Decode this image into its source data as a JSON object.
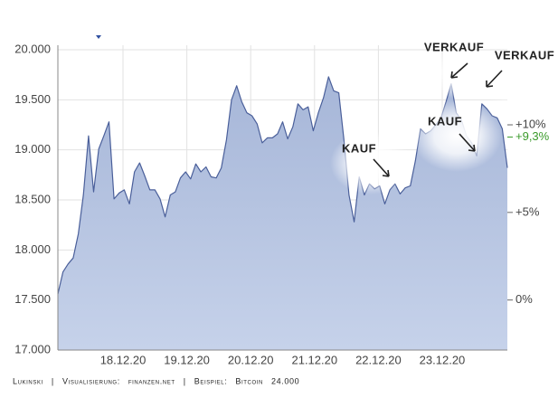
{
  "chart_data": {
    "type": "area",
    "x": [
      -1.02,
      -0.94,
      -0.86,
      -0.78,
      -0.7,
      -0.62,
      -0.54,
      -0.46,
      -0.38,
      -0.3,
      -0.22,
      -0.14,
      -0.06,
      0.02,
      0.1,
      0.18,
      0.26,
      0.34,
      0.42,
      0.5,
      0.58,
      0.66,
      0.74,
      0.82,
      0.9,
      0.98,
      1.06,
      1.14,
      1.22,
      1.3,
      1.38,
      1.46,
      1.54,
      1.62,
      1.7,
      1.78,
      1.86,
      1.94,
      2.02,
      2.1,
      2.18,
      2.26,
      2.34,
      2.42,
      2.5,
      2.58,
      2.66,
      2.74,
      2.82,
      2.9,
      2.98,
      3.06,
      3.14,
      3.22,
      3.3,
      3.38,
      3.46,
      3.54,
      3.62,
      3.7,
      3.78,
      3.86,
      3.94,
      4.02,
      4.1,
      4.18,
      4.26,
      4.34,
      4.42,
      4.5,
      4.58,
      4.66,
      4.74,
      4.82,
      4.9,
      4.98,
      5.06,
      5.14,
      5.22,
      5.3,
      5.38,
      5.46,
      5.54,
      5.62,
      5.7,
      5.78,
      5.86,
      5.94,
      6.02
    ],
    "series": [
      {
        "color": "#4a5f9a",
        "fill": "#b4c3e0",
        "values": [
          17560,
          17780,
          17860,
          17920,
          18160,
          18550,
          19140,
          18580,
          19010,
          19140,
          19280,
          18510,
          18570,
          18600,
          18460,
          18780,
          18870,
          18740,
          18600,
          18600,
          18510,
          18330,
          18550,
          18580,
          18720,
          18780,
          18710,
          18860,
          18780,
          18830,
          18730,
          18720,
          18820,
          19100,
          19500,
          19640,
          19480,
          19370,
          19340,
          19260,
          19070,
          19120,
          19120,
          19160,
          19280,
          19110,
          19230,
          19460,
          19400,
          19430,
          19190,
          19370,
          19520,
          19730,
          19590,
          19570,
          19100,
          18550,
          18280,
          18730,
          18550,
          18660,
          18610,
          18640,
          18460,
          18600,
          18660,
          18560,
          18620,
          18640,
          18890,
          19210,
          19160,
          19190,
          19250,
          19320,
          19480,
          19660,
          19370,
          19300,
          19140,
          19070,
          18940,
          19460,
          19410,
          19340,
          19320,
          19210,
          18820
        ]
      }
    ],
    "xlim": [
      -1.02,
      6.02
    ],
    "xticks": [
      {
        "value": 0,
        "label": "18.12.20"
      },
      {
        "value": 1,
        "label": "19.12.20"
      },
      {
        "value": 2,
        "label": "20.12.20"
      },
      {
        "value": 3,
        "label": "21.12.20"
      },
      {
        "value": 4,
        "label": "22.12.20"
      },
      {
        "value": 5,
        "label": "23.12.20"
      }
    ],
    "ylim": [
      17000,
      20000
    ],
    "yticks": [
      {
        "value": 17000,
        "label": "17.000"
      },
      {
        "value": 17500,
        "label": "17.500"
      },
      {
        "value": 18000,
        "label": "18.000"
      },
      {
        "value": 18500,
        "label": "18.500"
      },
      {
        "value": 19000,
        "label": "19.000"
      },
      {
        "value": 19500,
        "label": "19.500"
      },
      {
        "value": 20000,
        "label": "20.000"
      }
    ],
    "y2lim": [
      -2.857,
      14.286
    ],
    "y2ticks": [
      {
        "value": 0,
        "label": "0%"
      },
      {
        "value": 5,
        "label": "+5%"
      },
      {
        "value": 10,
        "label": "+10%"
      }
    ],
    "y2_marker": {
      "value": 9.3,
      "label": "+9,3%",
      "color": "#3a9a2a"
    },
    "grid": true,
    "annotations": [
      "KAUF",
      "KAUF",
      "VERKAUF",
      "VERKAUF"
    ],
    "footer": "Lukinski | Visualisierung: finanzen.net | Beispiel: Bitcoin 24.000"
  }
}
